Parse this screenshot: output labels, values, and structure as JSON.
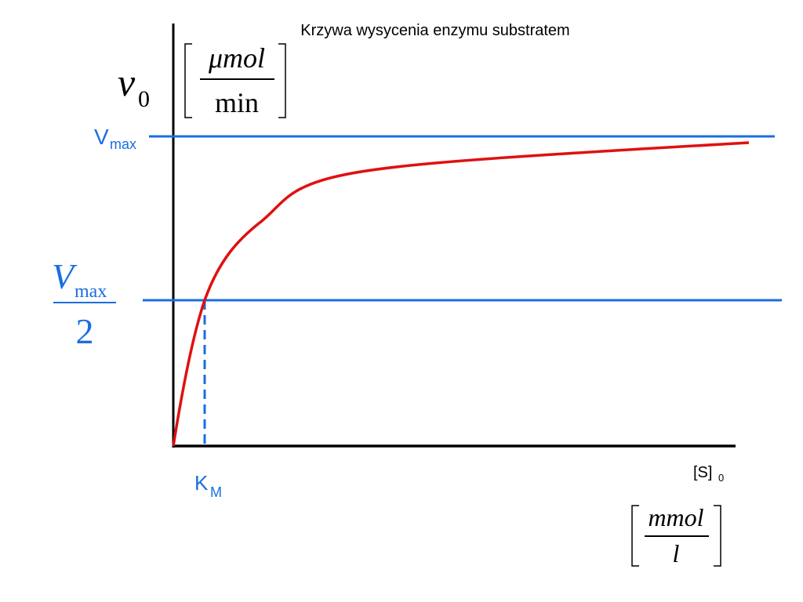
{
  "title": "Krzywa wysycenia enzymu substratem",
  "y_label": {
    "symbol": "v",
    "subscript": "0",
    "unit_numerator": "μmol",
    "unit_denominator": "min"
  },
  "vmax_label": {
    "symbol": "V",
    "subscript": "max"
  },
  "half_vmax_label": {
    "symbol": "V",
    "subscript": "max",
    "denominator": "2"
  },
  "km_label": {
    "symbol": "K",
    "subscript": "M"
  },
  "x_label": {
    "symbol": "[S]",
    "subscript": "0",
    "unit_numerator": "mmol",
    "unit_denominator": "l"
  }
}
